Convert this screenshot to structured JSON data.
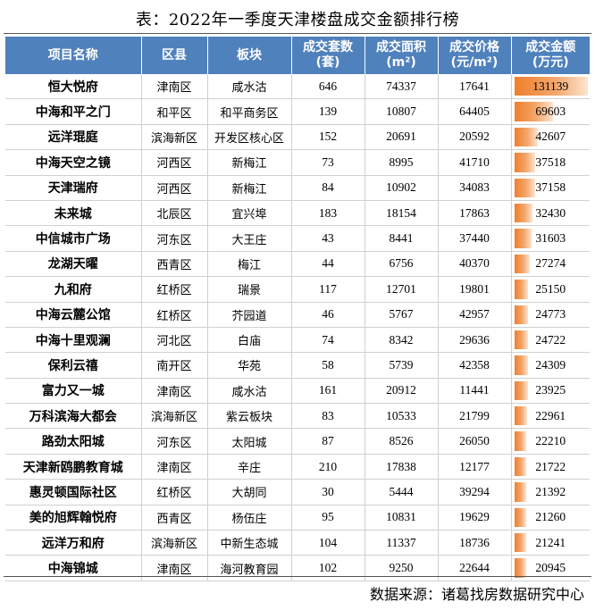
{
  "title": "表：2022年一季度天津楼盘成交金额排行榜",
  "headers": {
    "name": "项目名称",
    "district": "区县",
    "block": "板块",
    "units_l1": "成交套数",
    "units_l2": "(套)",
    "area_l1": "成交面积",
    "area_l2": "(m²)",
    "price_l1": "成交价格",
    "price_l2": "(元/m²)",
    "amount_l1": "成交金额",
    "amount_l2": "(万元)"
  },
  "amount_max": 131139,
  "colors": {
    "header_bg": "#4f81bd",
    "bar": "#ef7f2c"
  },
  "rows": [
    {
      "name": "恒大悦府",
      "district": "津南区",
      "block": "咸水沽",
      "units": "646",
      "area": "74337",
      "price": "17641",
      "amount": "131139",
      "amount_value": 131139
    },
    {
      "name": "中海和平之门",
      "district": "和平区",
      "block": "和平商务区",
      "units": "139",
      "area": "10807",
      "price": "64405",
      "amount": "69603",
      "amount_value": 69603
    },
    {
      "name": "远洋琨庭",
      "district": "滨海新区",
      "block": "开发区核心区",
      "units": "152",
      "area": "20691",
      "price": "20592",
      "amount": "42607",
      "amount_value": 42607
    },
    {
      "name": "中海天空之镜",
      "district": "河西区",
      "block": "新梅江",
      "units": "73",
      "area": "8995",
      "price": "41710",
      "amount": "37518",
      "amount_value": 37518
    },
    {
      "name": "天津瑞府",
      "district": "河西区",
      "block": "新梅江",
      "units": "84",
      "area": "10902",
      "price": "34083",
      "amount": "37158",
      "amount_value": 37158
    },
    {
      "name": "未来城",
      "district": "北辰区",
      "block": "宜兴埠",
      "units": "183",
      "area": "18154",
      "price": "17863",
      "amount": "32430",
      "amount_value": 32430
    },
    {
      "name": "中信城市广场",
      "district": "河东区",
      "block": "大王庄",
      "units": "43",
      "area": "8441",
      "price": "37440",
      "amount": "31603",
      "amount_value": 31603
    },
    {
      "name": "龙湖天曜",
      "district": "西青区",
      "block": "梅江",
      "units": "44",
      "area": "6756",
      "price": "40370",
      "amount": "27274",
      "amount_value": 27274
    },
    {
      "name": "九和府",
      "district": "红桥区",
      "block": "瑞景",
      "units": "117",
      "area": "12701",
      "price": "19801",
      "amount": "25150",
      "amount_value": 25150
    },
    {
      "name": "中海云麓公馆",
      "district": "红桥区",
      "block": "芥园道",
      "units": "46",
      "area": "5767",
      "price": "42957",
      "amount": "24773",
      "amount_value": 24773
    },
    {
      "name": "中海十里观澜",
      "district": "河北区",
      "block": "白庙",
      "units": "74",
      "area": "8342",
      "price": "29636",
      "amount": "24722",
      "amount_value": 24722
    },
    {
      "name": "保利云禧",
      "district": "南开区",
      "block": "华苑",
      "units": "58",
      "area": "5739",
      "price": "42358",
      "amount": "24309",
      "amount_value": 24309
    },
    {
      "name": "富力又一城",
      "district": "津南区",
      "block": "咸水沽",
      "units": "161",
      "area": "20912",
      "price": "11441",
      "amount": "23925",
      "amount_value": 23925
    },
    {
      "name": "万科滨海大都会",
      "district": "滨海新区",
      "block": "紫云板块",
      "units": "83",
      "area": "10533",
      "price": "21799",
      "amount": "22961",
      "amount_value": 22961
    },
    {
      "name": "路劲太阳城",
      "district": "河东区",
      "block": "太阳城",
      "units": "87",
      "area": "8526",
      "price": "26050",
      "amount": "22210",
      "amount_value": 22210
    },
    {
      "name": "天津新鸥鹏教育城",
      "district": "津南区",
      "block": "辛庄",
      "units": "210",
      "area": "17838",
      "price": "12177",
      "amount": "21722",
      "amount_value": 21722
    },
    {
      "name": "惠灵顿国际社区",
      "district": "红桥区",
      "block": "大胡同",
      "units": "30",
      "area": "5444",
      "price": "39294",
      "amount": "21392",
      "amount_value": 21392
    },
    {
      "name": "美的旭辉翰悦府",
      "district": "西青区",
      "block": "杨伍庄",
      "units": "95",
      "area": "10831",
      "price": "19629",
      "amount": "21260",
      "amount_value": 21260
    },
    {
      "name": "远洋万和府",
      "district": "滨海新区",
      "block": "中新生态城",
      "units": "104",
      "area": "11337",
      "price": "18736",
      "amount": "21241",
      "amount_value": 21241
    },
    {
      "name": "中海锦城",
      "district": "津南区",
      "block": "海河教育园",
      "units": "102",
      "area": "9250",
      "price": "22644",
      "amount": "20945",
      "amount_value": 20945
    }
  ],
  "source": "数据来源：诸葛找房数据研究中心"
}
